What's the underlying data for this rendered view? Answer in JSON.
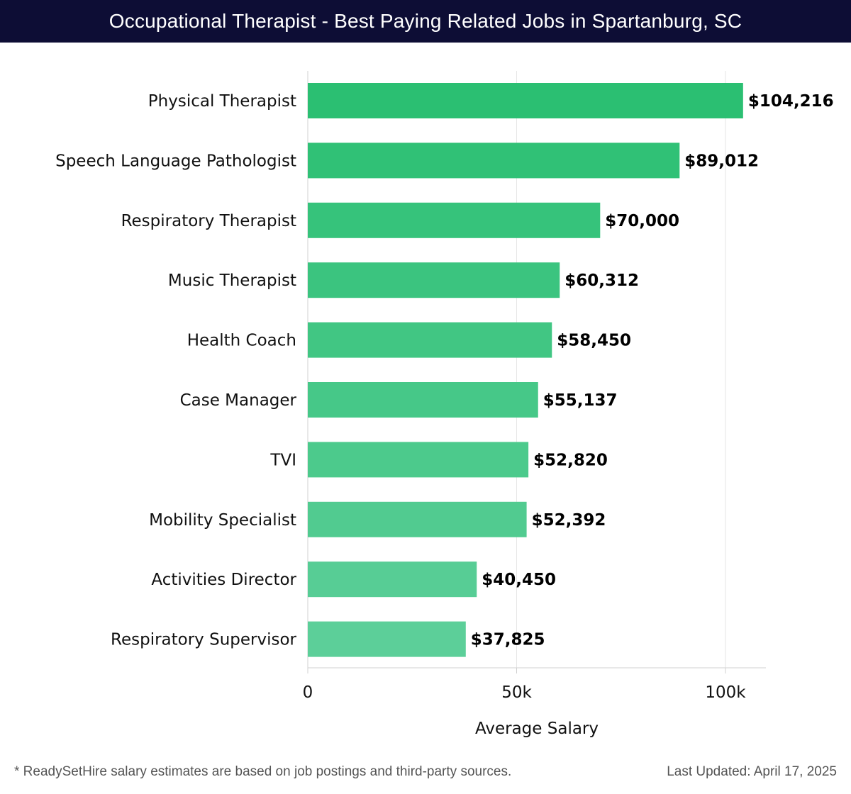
{
  "header": {
    "title": "Occupational Therapist - Best Paying Related Jobs in Spartanburg, SC"
  },
  "chart_data": {
    "type": "bar",
    "orientation": "horizontal",
    "categories": [
      "Physical Therapist",
      "Speech Language Pathologist",
      "Respiratory Therapist",
      "Music Therapist",
      "Health Coach",
      "Case Manager",
      "TVI",
      "Mobility Specialist",
      "Activities Director",
      "Respiratory Supervisor"
    ],
    "values": [
      104216,
      89012,
      70000,
      60312,
      58450,
      55137,
      52820,
      52392,
      40450,
      37825
    ],
    "value_labels": [
      "$104,216",
      "$89,012",
      "$70,000",
      "$60,312",
      "$58,450",
      "$55,137",
      "$52,820",
      "$52,392",
      "$40,450",
      "$37,825"
    ],
    "xlabel": "Average Salary",
    "ylabel": "",
    "xlim": [
      0,
      110000
    ],
    "xticks": [
      0,
      50000,
      100000
    ],
    "xtick_labels": [
      "0",
      "50k",
      "100k"
    ],
    "grid": true,
    "colors": {
      "bar_top": "#2bbf72",
      "bar_bottom": "#5ccf99"
    }
  },
  "footer": {
    "note": "* ReadySetHire salary estimates are based on job postings and third-party sources.",
    "updated": "Last Updated: April 17, 2025"
  }
}
